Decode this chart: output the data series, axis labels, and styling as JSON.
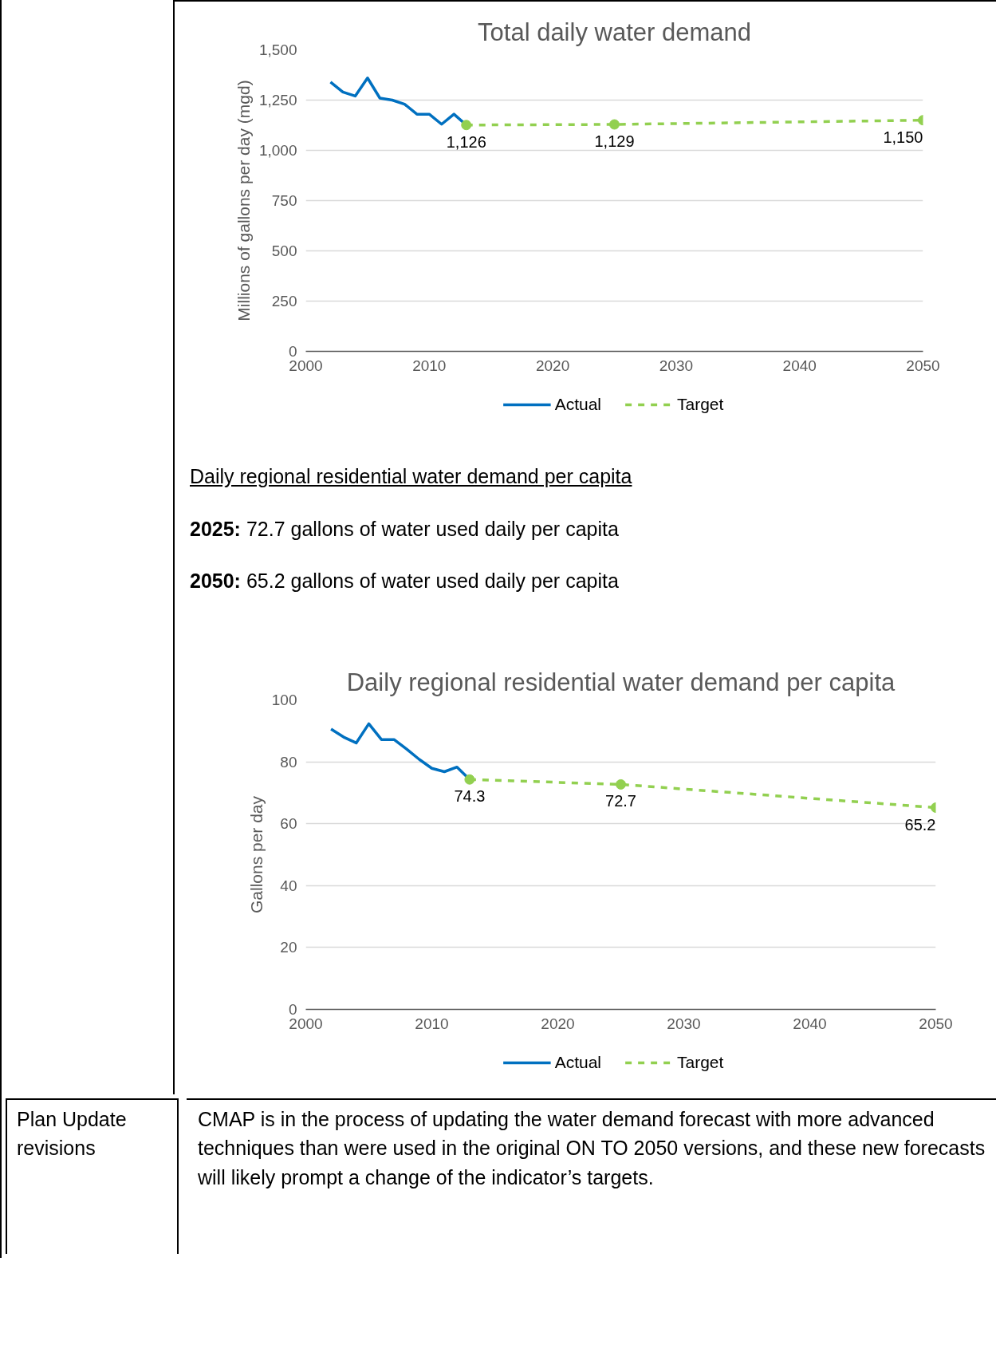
{
  "chart_data": [
    {
      "type": "line",
      "title": "Total daily water demand",
      "ylabel": "Millions of gallons per day (mgd)",
      "xlim": [
        2000,
        2050
      ],
      "xticks": [
        2000,
        2010,
        2020,
        2030,
        2040,
        2050
      ],
      "ylim": [
        0,
        1500
      ],
      "yticks": [
        0,
        {
          "value": 250,
          "label": "250"
        },
        {
          "value": 500,
          "label": "500"
        },
        {
          "value": 750,
          "label": "750"
        },
        {
          "value": 1000,
          "label": "1,000"
        },
        {
          "value": 1250,
          "label": "1,250"
        },
        {
          "value": 1500,
          "label": "1,500"
        }
      ],
      "grid": "y",
      "legend": "bottom",
      "series": [
        {
          "name": "Actual",
          "color": "#0070c0",
          "line_style": "solid",
          "marker": "none",
          "x": [
            2002,
            2003,
            2004,
            2005,
            2006,
            2007,
            2008,
            2009,
            2010,
            2011,
            2012,
            2013
          ],
          "values": [
            1340,
            1290,
            1270,
            1360,
            1260,
            1250,
            1230,
            1180,
            1180,
            1130,
            1180,
            1126
          ]
        },
        {
          "name": "Target",
          "color": "#92d050",
          "line_style": "dashed",
          "marker": "circle",
          "x": [
            2013,
            2025,
            2050
          ],
          "values": [
            1126,
            1129,
            1150
          ],
          "value_labels": [
            "1,126",
            "1,129",
            "1,150"
          ]
        }
      ]
    },
    {
      "type": "other",
      "title": "Daily regional residential water demand per capita",
      "annotations": [
        "2025: 72.7 gallons of water used daily per capita",
        "2050: 65.2 gallons of water used daily per capita"
      ]
    },
    {
      "type": "line",
      "title": "Daily regional residential water demand per capita",
      "ylabel": "Gallons per day",
      "xlim": [
        2000,
        2050
      ],
      "xticks": [
        2000,
        2010,
        2020,
        2030,
        2040,
        2050
      ],
      "ylim": [
        0,
        100
      ],
      "yticks": [
        0,
        20,
        40,
        60,
        80,
        100
      ],
      "grid": "y",
      "legend": "bottom",
      "series": [
        {
          "name": "Actual",
          "color": "#0070c0",
          "line_style": "solid",
          "marker": "none",
          "x": [
            2002,
            2003,
            2004,
            2005,
            2006,
            2007,
            2008,
            2009,
            2010,
            2011,
            2012,
            2013
          ],
          "values": [
            90.6,
            88.0,
            86.1,
            92.3,
            87.2,
            87.2,
            84.1,
            80.8,
            77.9,
            76.8,
            78.3,
            74.3
          ]
        },
        {
          "name": "Target",
          "color": "#92d050",
          "line_style": "dashed",
          "marker": "circle",
          "x": [
            2013,
            2025,
            2050
          ],
          "values": [
            74.3,
            72.7,
            65.2
          ],
          "value_labels": [
            "74.3",
            "72.7",
            "65.2"
          ]
        }
      ]
    },
    {
      "type": "other",
      "annotations": [
        "Plan Update revisions",
        "CMAP is in the process of updating the water demand forecast with more advanced techniques than were used in the original ON TO 2050 versions, and these new forecasts will likely prompt a change of the indicator’s targets."
      ]
    }
  ]
}
